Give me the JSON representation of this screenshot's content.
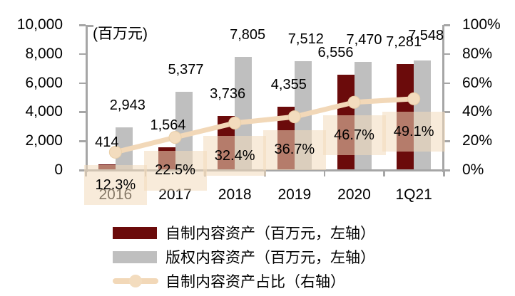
{
  "unit_label": "(百万元)",
  "chart_data": {
    "type": "combo",
    "title": "",
    "unit_note": "(百万元)",
    "categories": [
      "2016",
      "2017",
      "2018",
      "2019",
      "2020",
      "1Q21"
    ],
    "series": [
      {
        "name": "自制内容资产（百万元，左轴）",
        "type": "bar",
        "axis": "left",
        "color": "#6B0B0B",
        "values": [
          414,
          1564,
          3736,
          4355,
          6556,
          7281
        ],
        "labels": [
          "414",
          "1,564",
          "3,736",
          "4,355",
          "6,556",
          "7,281"
        ]
      },
      {
        "name": "版权内容资产（百万元，左轴）",
        "type": "bar",
        "axis": "left",
        "color": "#BFBFBF",
        "values": [
          2943,
          5377,
          7805,
          7512,
          7470,
          7548
        ],
        "labels": [
          "2,943",
          "5,377",
          "7,805",
          "7,512",
          "7,470",
          "7,548"
        ]
      },
      {
        "name": "自制内容资产占比（右轴）",
        "type": "line",
        "axis": "right",
        "color": "#F2D8B8",
        "marker_color": "#F3DCBE",
        "label_background": "#F3DBBC",
        "values": [
          12.3,
          22.5,
          32.4,
          36.7,
          46.7,
          49.1
        ],
        "labels": [
          "12.3%",
          "22.5%",
          "32.4%",
          "36.7%",
          "46.7%",
          "49.1%"
        ]
      }
    ],
    "left_axis": {
      "min": 0,
      "max": 10000,
      "tick_labels": [
        "10,000",
        "8,000",
        "6,000",
        "4,000",
        "2,000",
        "0"
      ]
    },
    "right_axis": {
      "min": "0%",
      "max": "100%",
      "tick_labels": [
        "100%",
        "80%",
        "60%",
        "40%",
        "20%",
        "0%"
      ]
    },
    "grid": false,
    "legend_position": "bottom"
  },
  "colors": {
    "axis": "#A6A6A6",
    "text": "#000000",
    "background": "#FFFFFF"
  }
}
